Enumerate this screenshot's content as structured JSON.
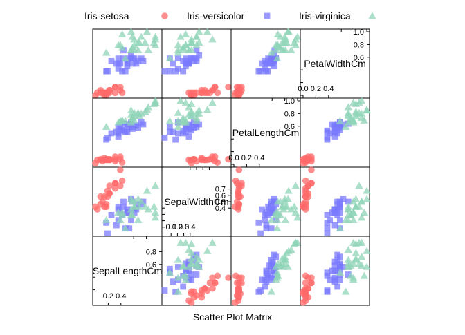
{
  "chart_data": {
    "type": "scatter",
    "title": "",
    "xlabel": "Scatter Plot Matrix",
    "ylabel": "",
    "variables": [
      "SepalLengthCm",
      "SepalWidthCm",
      "PetalLengthCm",
      "PetalWidthCm"
    ],
    "diagonal_labels": [
      "SepalLengthCm",
      "SepalWidthCm",
      "PetalLengthCm",
      "PetalWidthCm"
    ],
    "axis_range": [
      0,
      1
    ],
    "grid": false,
    "legend_position": "top",
    "diagonal_ticks": {
      "SepalLengthCm": {
        "upper": [
          "0.6",
          "0.8"
        ],
        "lower": [
          "0.2",
          "0.4"
        ],
        "upper_values": [
          0.6,
          0.8
        ],
        "lower_values": [
          0.2,
          0.4
        ]
      },
      "SepalWidthCm": {
        "upper": [
          "0.4",
          "0.5",
          "0.6",
          "0.7"
        ],
        "lower": [
          "0.1",
          "0.2",
          "0.3",
          "0.4"
        ],
        "upper_values": [
          0.4,
          0.5,
          0.6,
          0.7
        ],
        "lower_values": [
          0.1,
          0.2,
          0.3,
          0.4
        ]
      },
      "PetalLengthCm": {
        "upper": [
          "0.6",
          "0.8",
          "1.0"
        ],
        "lower": [
          "0.0",
          "0.2",
          "0.4"
        ],
        "upper_values": [
          0.6,
          0.8,
          1.0
        ],
        "lower_values": [
          0.0,
          0.2,
          0.4
        ]
      },
      "PetalWidthCm": {
        "upper": [
          "0.6",
          "0.8",
          "1.0"
        ],
        "lower": [
          "0.0",
          "0.2",
          "0.4"
        ],
        "upper_values": [
          0.6,
          0.8,
          1.0
        ],
        "lower_values": [
          0.0,
          0.2,
          0.4
        ]
      }
    },
    "series": [
      {
        "name": "Iris-setosa",
        "color": "#ff6a6a",
        "marker": "circle",
        "points": [
          [
            0.22,
            0.63,
            0.07,
            0.04
          ],
          [
            0.17,
            0.42,
            0.07,
            0.04
          ],
          [
            0.11,
            0.5,
            0.05,
            0.04
          ],
          [
            0.08,
            0.46,
            0.08,
            0.04
          ],
          [
            0.19,
            0.67,
            0.07,
            0.04
          ],
          [
            0.31,
            0.79,
            0.12,
            0.13
          ],
          [
            0.08,
            0.58,
            0.07,
            0.08
          ],
          [
            0.19,
            0.58,
            0.08,
            0.04
          ],
          [
            0.03,
            0.38,
            0.07,
            0.04
          ],
          [
            0.17,
            0.46,
            0.08,
            0.0
          ],
          [
            0.31,
            0.71,
            0.08,
            0.04
          ],
          [
            0.14,
            0.58,
            0.1,
            0.04
          ],
          [
            0.14,
            0.42,
            0.07,
            0.0
          ],
          [
            0.0,
            0.42,
            0.02,
            0.0
          ],
          [
            0.42,
            0.83,
            0.03,
            0.04
          ],
          [
            0.39,
            1.0,
            0.08,
            0.13
          ],
          [
            0.31,
            0.79,
            0.05,
            0.13
          ],
          [
            0.22,
            0.63,
            0.07,
            0.08
          ],
          [
            0.39,
            0.75,
            0.12,
            0.08
          ],
          [
            0.22,
            0.75,
            0.08,
            0.08
          ]
        ]
      },
      {
        "name": "Iris-versicolor",
        "color": "#7a7aff",
        "marker": "square",
        "points": [
          [
            0.75,
            0.5,
            0.63,
            0.54
          ],
          [
            0.58,
            0.5,
            0.59,
            0.58
          ],
          [
            0.72,
            0.46,
            0.66,
            0.58
          ],
          [
            0.33,
            0.13,
            0.51,
            0.5
          ],
          [
            0.61,
            0.33,
            0.61,
            0.58
          ],
          [
            0.39,
            0.33,
            0.59,
            0.5
          ],
          [
            0.56,
            0.54,
            0.63,
            0.63
          ],
          [
            0.17,
            0.17,
            0.39,
            0.38
          ],
          [
            0.64,
            0.38,
            0.61,
            0.5
          ],
          [
            0.25,
            0.29,
            0.49,
            0.54
          ],
          [
            0.19,
            0.0,
            0.42,
            0.38
          ],
          [
            0.44,
            0.42,
            0.54,
            0.58
          ],
          [
            0.47,
            0.08,
            0.51,
            0.38
          ],
          [
            0.5,
            0.38,
            0.63,
            0.54
          ],
          [
            0.36,
            0.38,
            0.44,
            0.5
          ],
          [
            0.67,
            0.46,
            0.58,
            0.54
          ],
          [
            0.36,
            0.42,
            0.59,
            0.58
          ],
          [
            0.42,
            0.29,
            0.53,
            0.38
          ],
          [
            0.53,
            0.08,
            0.59,
            0.58
          ],
          [
            0.36,
            0.21,
            0.49,
            0.42
          ],
          [
            0.44,
            0.5,
            0.64,
            0.71
          ],
          [
            0.5,
            0.33,
            0.51,
            0.5
          ],
          [
            0.56,
            0.21,
            0.66,
            0.58
          ],
          [
            0.5,
            0.33,
            0.63,
            0.46
          ],
          [
            0.58,
            0.38,
            0.56,
            0.5
          ]
        ]
      },
      {
        "name": "Iris-virginica",
        "color": "#8fd4b8",
        "marker": "triangle",
        "points": [
          [
            0.56,
            0.54,
            0.85,
            1.0
          ],
          [
            0.42,
            0.29,
            0.69,
            0.75
          ],
          [
            0.78,
            0.42,
            0.83,
            0.83
          ],
          [
            0.56,
            0.38,
            0.78,
            0.71
          ],
          [
            0.61,
            0.42,
            0.81,
            0.88
          ],
          [
            0.92,
            0.42,
            0.95,
            0.83
          ],
          [
            0.17,
            0.21,
            0.59,
            0.67
          ],
          [
            0.83,
            0.38,
            0.9,
            0.71
          ],
          [
            0.67,
            0.21,
            0.81,
            0.71
          ],
          [
            0.81,
            0.67,
            0.86,
            1.0
          ],
          [
            0.61,
            0.5,
            0.69,
            0.79
          ],
          [
            0.58,
            0.29,
            0.73,
            0.75
          ],
          [
            0.69,
            0.42,
            0.76,
            0.83
          ],
          [
            0.39,
            0.21,
            0.68,
            0.79
          ],
          [
            0.42,
            0.33,
            0.69,
            0.96
          ],
          [
            0.58,
            0.5,
            0.73,
            0.92
          ],
          [
            0.61,
            0.42,
            0.76,
            0.71
          ],
          [
            0.94,
            0.75,
            0.97,
            0.88
          ],
          [
            0.94,
            0.25,
            1.0,
            0.92
          ],
          [
            0.47,
            0.08,
            0.68,
            0.58
          ],
          [
            0.72,
            0.5,
            0.8,
            0.92
          ],
          [
            0.36,
            0.33,
            0.66,
            0.79
          ],
          [
            0.94,
            0.33,
            0.97,
            0.79
          ],
          [
            0.56,
            0.29,
            0.66,
            0.71
          ],
          [
            0.67,
            0.54,
            0.8,
            0.83
          ]
        ]
      }
    ]
  }
}
